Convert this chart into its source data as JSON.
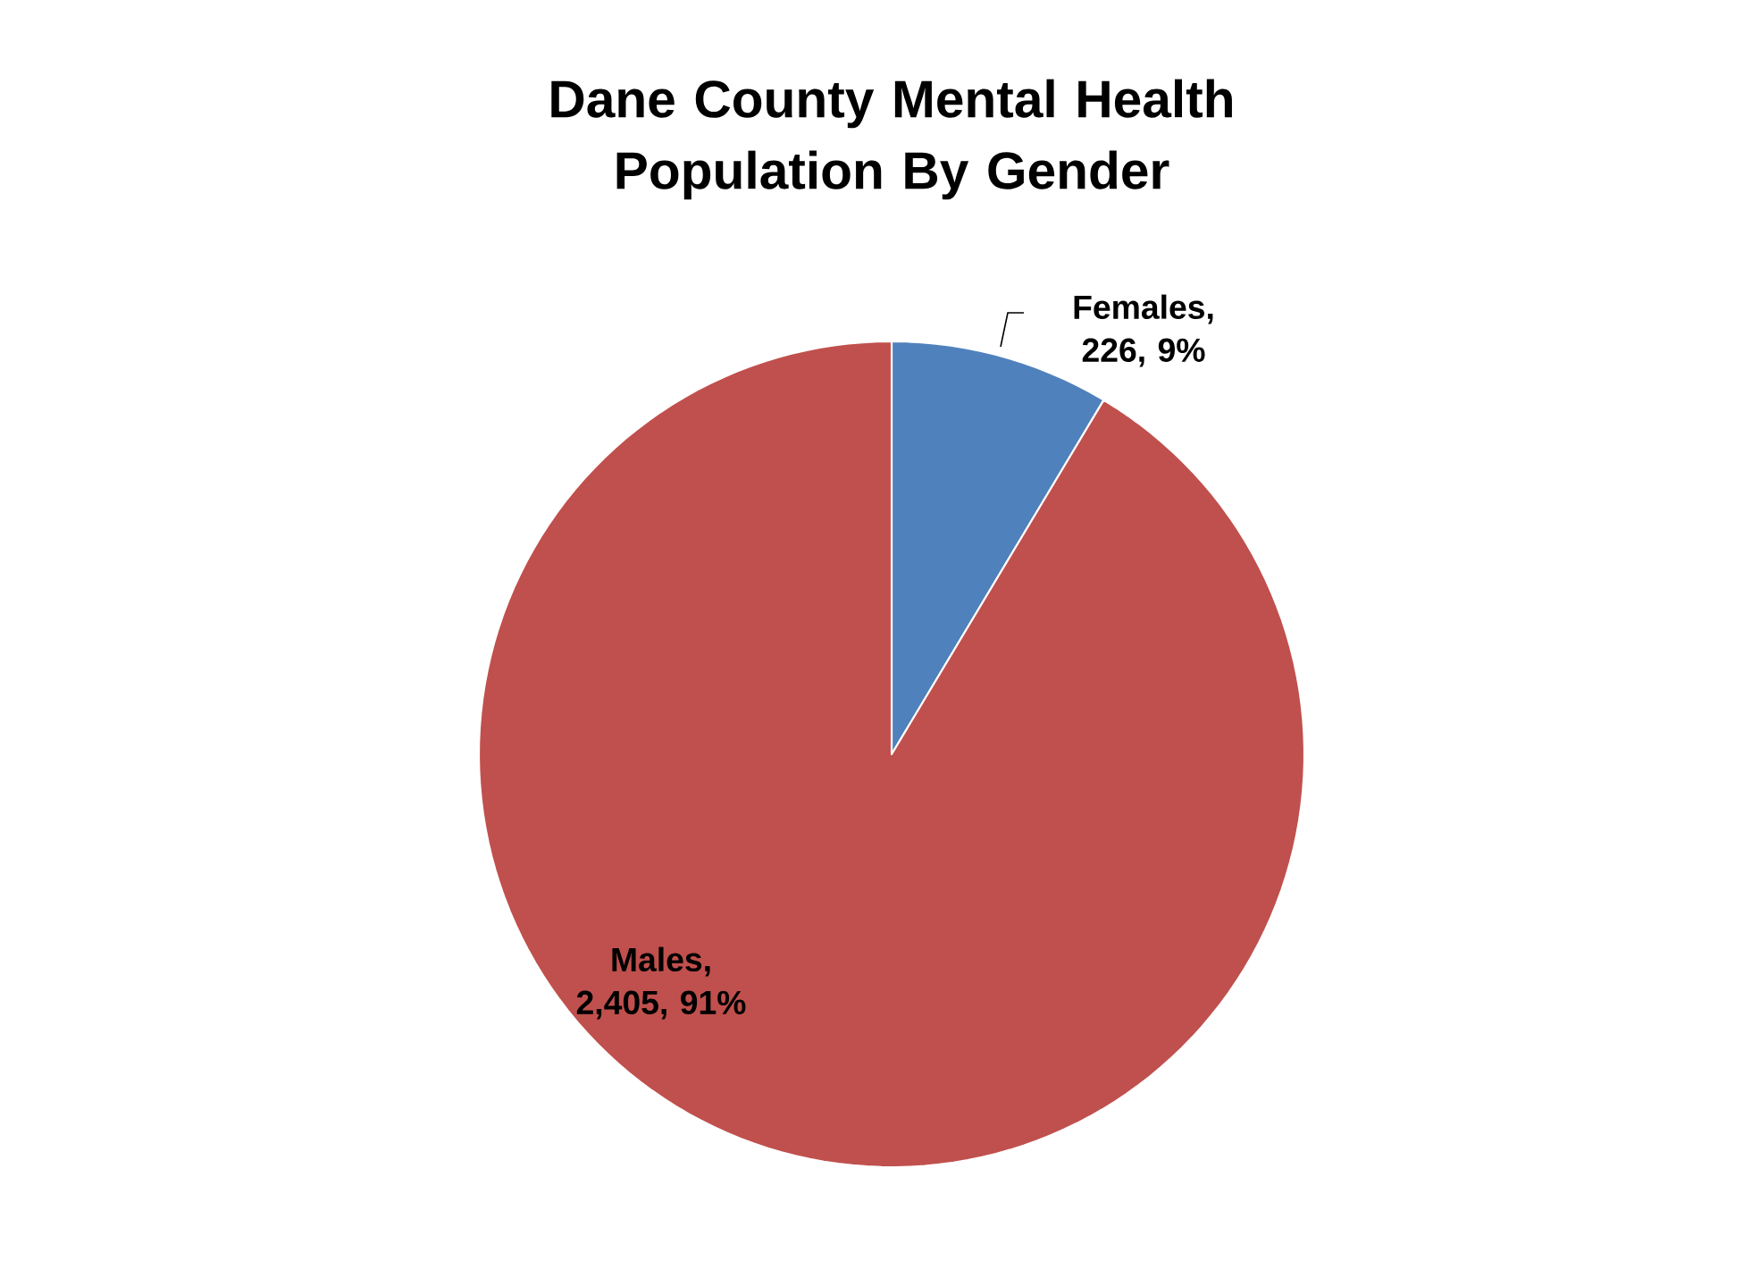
{
  "chart_data": {
    "type": "pie",
    "title": "Dane County Mental Health Population By Gender",
    "categories": [
      "Females",
      "Males"
    ],
    "values": [
      226,
      2405
    ],
    "colors": [
      "#4f81bd",
      "#c0504d"
    ],
    "value_labels": [
      ", 226, 9%",
      ", 2,405, 91%"
    ]
  }
}
